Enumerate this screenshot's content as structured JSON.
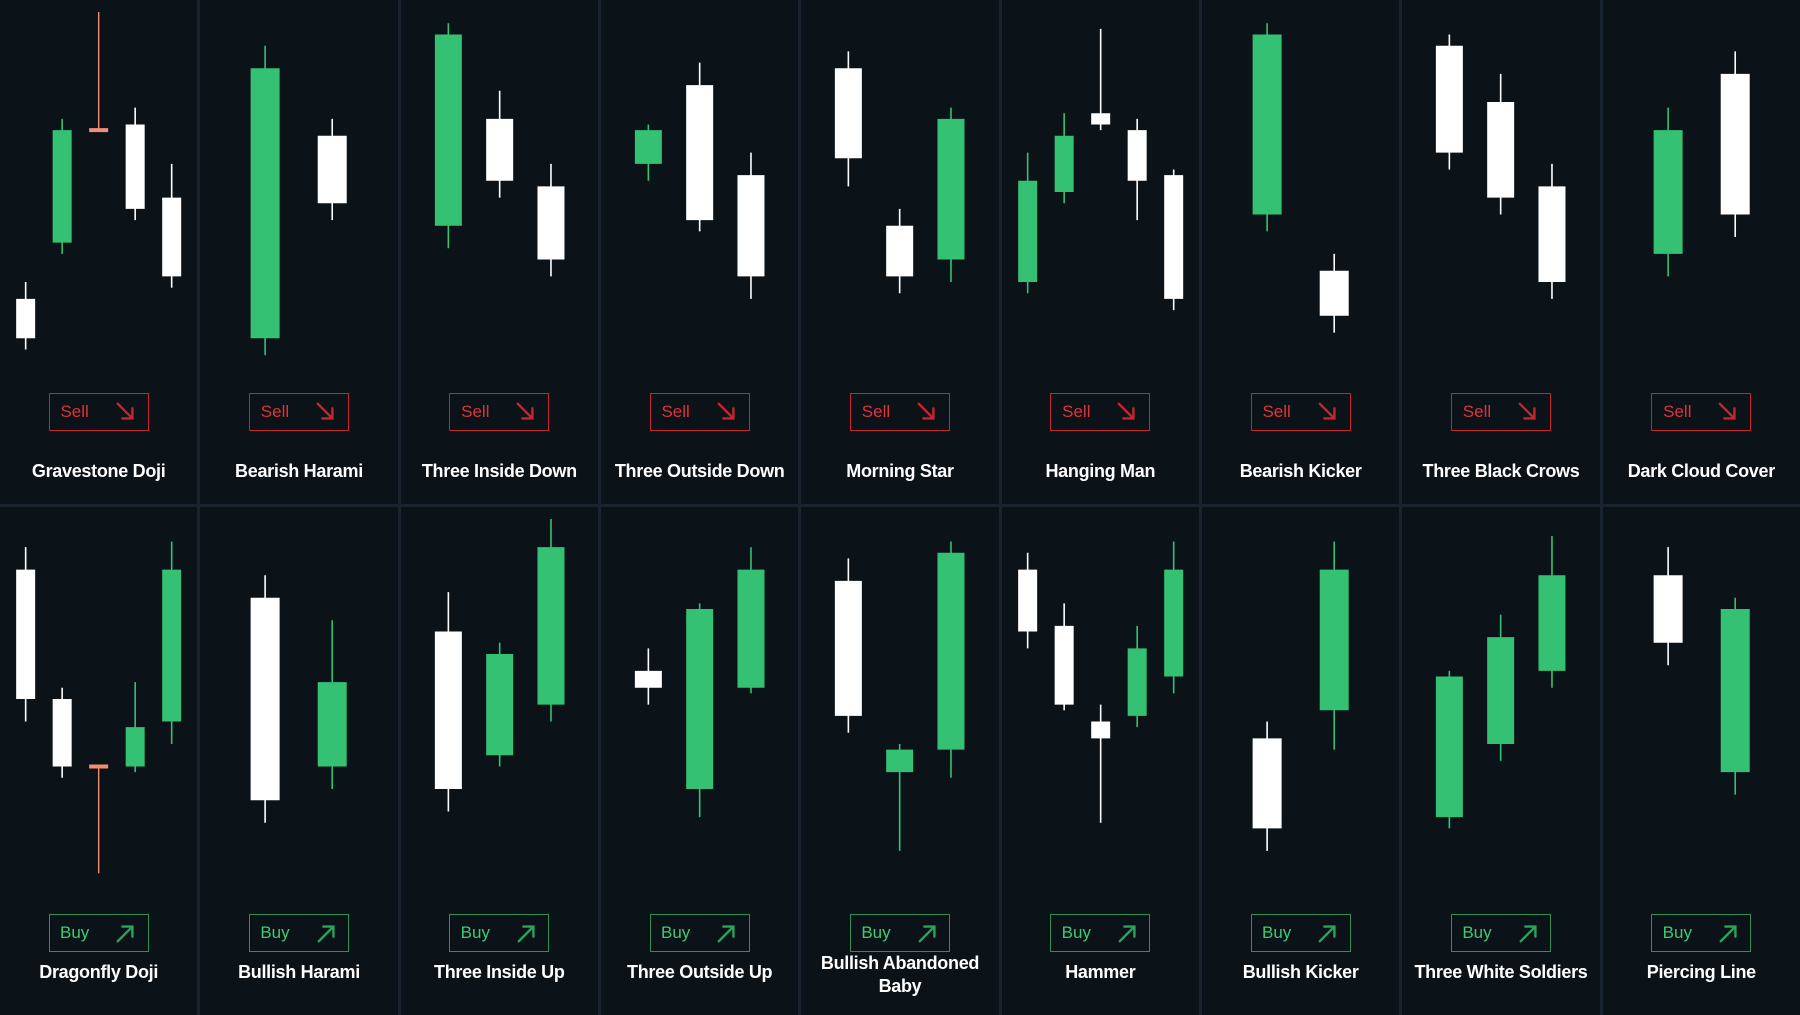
{
  "colors": {
    "bull": "#35c173",
    "bear": "#ffffff",
    "doji": "#f08f76",
    "sell": "#e0323a",
    "buy": "#3ccb74",
    "background": "#0b1218",
    "divider": "#1a2430"
  },
  "chart_data": [
    {
      "type": "candlestick",
      "title": "Gravestone Doji",
      "signal": "Sell",
      "candles": [
        {
          "open": 14.5,
          "high": 16.0,
          "low": 10.0,
          "close": 11.0
        },
        {
          "open": 19.5,
          "high": 30.5,
          "low": 18.5,
          "close": 29.5
        },
        {
          "open": 29.5,
          "high": 40.0,
          "low": 29.5,
          "close": 29.5
        },
        {
          "open": 30.0,
          "high": 31.5,
          "low": 21.5,
          "close": 22.5
        },
        {
          "open": 23.5,
          "high": 26.5,
          "low": 15.5,
          "close": 16.5
        }
      ]
    },
    {
      "type": "candlestick",
      "title": "Bearish Harami",
      "signal": "Sell",
      "candles": [
        {
          "open": 11.0,
          "high": 37.0,
          "low": 9.5,
          "close": 35.0
        },
        {
          "open": 29.0,
          "high": 30.5,
          "low": 21.5,
          "close": 23.0
        }
      ]
    },
    {
      "type": "candlestick",
      "title": "Three Inside Down",
      "signal": "Sell",
      "candles": [
        {
          "open": 21.0,
          "high": 39.0,
          "low": 19.0,
          "close": 38.0
        },
        {
          "open": 30.5,
          "high": 33.0,
          "low": 23.5,
          "close": 25.0
        },
        {
          "open": 24.5,
          "high": 26.5,
          "low": 16.5,
          "close": 18.0
        }
      ]
    },
    {
      "type": "candlestick",
      "title": "Three Outside Down",
      "signal": "Sell",
      "candles": [
        {
          "open": 26.5,
          "high": 30.0,
          "low": 25.0,
          "close": 29.5
        },
        {
          "open": 33.5,
          "high": 35.5,
          "low": 20.5,
          "close": 21.5
        },
        {
          "open": 25.5,
          "high": 27.5,
          "low": 14.5,
          "close": 16.5
        }
      ]
    },
    {
      "type": "candlestick",
      "title": "Morning Star",
      "signal": "Sell",
      "candles": [
        {
          "open": 35.0,
          "high": 36.5,
          "low": 24.5,
          "close": 27.0
        },
        {
          "open": 21.0,
          "high": 22.5,
          "low": 15.0,
          "close": 16.5
        },
        {
          "open": 18.0,
          "high": 31.5,
          "low": 16.0,
          "close": 30.5
        }
      ]
    },
    {
      "type": "candlestick",
      "title": "Hanging Man",
      "signal": "Sell",
      "candles": [
        {
          "open": 16.0,
          "high": 27.5,
          "low": 15.0,
          "close": 25.0
        },
        {
          "open": 24.0,
          "high": 31.0,
          "low": 23.0,
          "close": 29.0
        },
        {
          "open": 31.0,
          "high": 38.5,
          "low": 29.5,
          "close": 30.0
        },
        {
          "open": 29.5,
          "high": 30.5,
          "low": 21.5,
          "close": 25.0
        },
        {
          "open": 25.5,
          "high": 26.0,
          "low": 13.5,
          "close": 14.5
        }
      ]
    },
    {
      "type": "candlestick",
      "title": "Bearish Kicker",
      "signal": "Sell",
      "candles": [
        {
          "open": 22.0,
          "high": 39.0,
          "low": 20.5,
          "close": 38.0
        },
        {
          "open": 17.0,
          "high": 18.5,
          "low": 11.5,
          "close": 13.0
        }
      ]
    },
    {
      "type": "candlestick",
      "title": "Three Black Crows",
      "signal": "Sell",
      "candles": [
        {
          "open": 37.0,
          "high": 38.0,
          "low": 26.0,
          "close": 27.5
        },
        {
          "open": 32.0,
          "high": 34.5,
          "low": 22.0,
          "close": 23.5
        },
        {
          "open": 24.5,
          "high": 26.5,
          "low": 14.5,
          "close": 16.0
        }
      ]
    },
    {
      "type": "candlestick",
      "title": "Dark Cloud Cover",
      "signal": "Sell",
      "candles": [
        {
          "open": 18.5,
          "high": 31.5,
          "low": 16.5,
          "close": 29.5
        },
        {
          "open": 34.5,
          "high": 36.5,
          "low": 20.0,
          "close": 22.0
        }
      ]
    },
    {
      "type": "candlestick",
      "title": "Dragonfly Doji",
      "signal": "Buy",
      "candles": [
        {
          "open": 35.5,
          "high": 37.5,
          "low": 22.0,
          "close": 24.0
        },
        {
          "open": 24.0,
          "high": 25.0,
          "low": 17.0,
          "close": 18.0
        },
        {
          "open": 18.0,
          "high": 18.0,
          "low": 8.5,
          "close": 18.0
        },
        {
          "open": 18.0,
          "high": 25.5,
          "low": 17.5,
          "close": 21.5
        },
        {
          "open": 22.0,
          "high": 38.0,
          "low": 20.0,
          "close": 35.5
        }
      ]
    },
    {
      "type": "candlestick",
      "title": "Bullish Harami",
      "signal": "Buy",
      "candles": [
        {
          "open": 33.0,
          "high": 35.0,
          "low": 13.0,
          "close": 15.0
        },
        {
          "open": 18.0,
          "high": 31.0,
          "low": 16.0,
          "close": 25.5
        }
      ]
    },
    {
      "type": "candlestick",
      "title": "Three Inside Up",
      "signal": "Buy",
      "candles": [
        {
          "open": 30.0,
          "high": 33.5,
          "low": 14.0,
          "close": 16.0
        },
        {
          "open": 19.0,
          "high": 29.0,
          "low": 18.0,
          "close": 28.0
        },
        {
          "open": 23.5,
          "high": 40.0,
          "low": 22.0,
          "close": 37.5
        }
      ]
    },
    {
      "type": "candlestick",
      "title": "Three Outside Up",
      "signal": "Buy",
      "candles": [
        {
          "open": 26.5,
          "high": 28.5,
          "low": 23.5,
          "close": 25.0
        },
        {
          "open": 16.0,
          "high": 32.5,
          "low": 13.5,
          "close": 32.0
        },
        {
          "open": 25.0,
          "high": 37.5,
          "low": 24.5,
          "close": 35.5
        }
      ]
    },
    {
      "type": "candlestick",
      "title": "Bullish Abandoned Baby",
      "signal": "Buy",
      "candles": [
        {
          "open": 34.5,
          "high": 36.5,
          "low": 21.0,
          "close": 22.5
        },
        {
          "open": 17.5,
          "high": 20.0,
          "low": 10.5,
          "close": 19.5
        },
        {
          "open": 19.5,
          "high": 38.0,
          "low": 17.0,
          "close": 37.0
        }
      ]
    },
    {
      "type": "candlestick",
      "title": "Hammer",
      "signal": "Buy",
      "candles": [
        {
          "open": 35.5,
          "high": 37.0,
          "low": 28.5,
          "close": 30.0
        },
        {
          "open": 30.5,
          "high": 32.5,
          "low": 23.0,
          "close": 23.5
        },
        {
          "open": 22.0,
          "high": 23.5,
          "low": 13.0,
          "close": 20.5
        },
        {
          "open": 22.5,
          "high": 30.5,
          "low": 21.5,
          "close": 28.5
        },
        {
          "open": 26.0,
          "high": 38.0,
          "low": 24.5,
          "close": 35.5
        }
      ]
    },
    {
      "type": "candlestick",
      "title": "Bullish Kicker",
      "signal": "Buy",
      "candles": [
        {
          "open": 20.5,
          "high": 22.0,
          "low": 10.5,
          "close": 12.5
        },
        {
          "open": 23.0,
          "high": 38.0,
          "low": 19.5,
          "close": 35.5
        }
      ]
    },
    {
      "type": "candlestick",
      "title": "Three White Soldiers",
      "signal": "Buy",
      "candles": [
        {
          "open": 13.5,
          "high": 26.5,
          "low": 12.5,
          "close": 26.0
        },
        {
          "open": 20.0,
          "high": 31.5,
          "low": 18.5,
          "close": 29.5
        },
        {
          "open": 26.5,
          "high": 38.5,
          "low": 25.0,
          "close": 35.0
        }
      ]
    },
    {
      "type": "candlestick",
      "title": "Piercing Line",
      "signal": "Buy",
      "candles": [
        {
          "open": 35.0,
          "high": 37.5,
          "low": 27.0,
          "close": 29.0
        },
        {
          "open": 17.5,
          "high": 33.0,
          "low": 15.5,
          "close": 32.0
        }
      ]
    }
  ]
}
